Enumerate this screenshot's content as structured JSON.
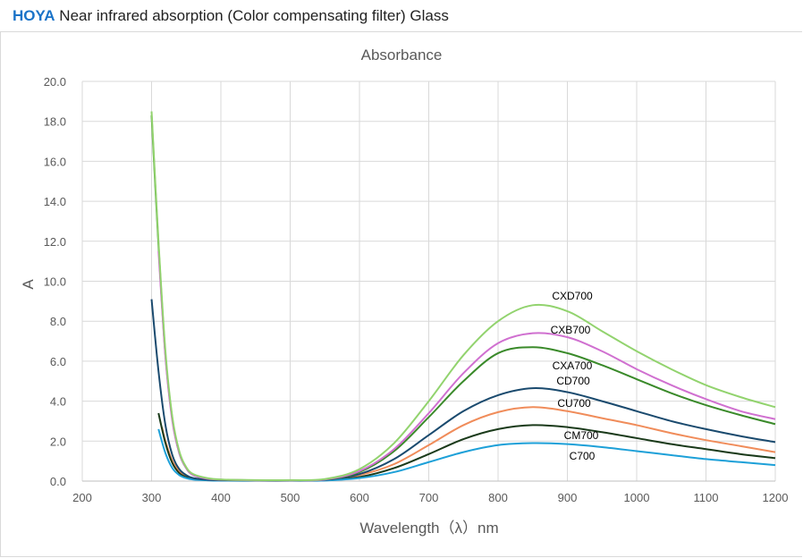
{
  "header": {
    "brand": "HOYA",
    "title": "Near infrared absorption (Color compensating filter) Glass"
  },
  "chart_data": {
    "type": "line",
    "title": "Absorbance",
    "xlabel": "Wavelength（λ）nm",
    "ylabel": "A",
    "xlim": [
      200,
      1200
    ],
    "ylim": [
      0,
      20
    ],
    "xticks": [
      "200",
      "300",
      "400",
      "500",
      "600",
      "700",
      "800",
      "900",
      "1000",
      "1100",
      "1200"
    ],
    "yticks": [
      "0.0",
      "2.0",
      "4.0",
      "6.0",
      "8.0",
      "10.0",
      "12.0",
      "14.0",
      "16.0",
      "18.0",
      "20.0"
    ],
    "grid": true,
    "legend": "inline labels",
    "series": [
      {
        "name": "CXD700",
        "color": "#92d36e",
        "x": [
          300,
          310,
          320,
          330,
          340,
          350,
          360,
          380,
          400,
          450,
          500,
          550,
          600,
          650,
          700,
          750,
          800,
          850,
          900,
          950,
          1000,
          1050,
          1100,
          1150,
          1200
        ],
        "y": [
          18.5,
          12,
          6.5,
          3.2,
          1.5,
          0.7,
          0.35,
          0.15,
          0.08,
          0.05,
          0.05,
          0.1,
          0.6,
          1.9,
          4.0,
          6.3,
          8.0,
          8.8,
          8.5,
          7.5,
          6.5,
          5.6,
          4.8,
          4.2,
          3.7
        ]
      },
      {
        "name": "CXB700",
        "color": "#d070d0",
        "x": [
          310,
          320,
          330,
          340,
          350,
          360,
          380,
          400,
          450,
          500,
          550,
          600,
          650,
          700,
          750,
          800,
          850,
          900,
          950,
          1000,
          1050,
          1100,
          1150,
          1200
        ],
        "y": [
          11.5,
          6.2,
          3.0,
          1.4,
          0.65,
          0.3,
          0.12,
          0.07,
          0.04,
          0.04,
          0.08,
          0.5,
          1.6,
          3.4,
          5.4,
          6.9,
          7.4,
          7.2,
          6.5,
          5.6,
          4.8,
          4.1,
          3.5,
          3.1
        ]
      },
      {
        "name": "CXA700",
        "color": "#3a8a2a",
        "x": [
          300,
          310,
          320,
          330,
          340,
          350,
          360,
          380,
          400,
          450,
          500,
          550,
          600,
          650,
          700,
          750,
          800,
          850,
          900,
          950,
          1000,
          1050,
          1100,
          1150,
          1200
        ],
        "y": [
          18.3,
          11.8,
          6.3,
          3.1,
          1.4,
          0.65,
          0.3,
          0.12,
          0.07,
          0.04,
          0.04,
          0.08,
          0.45,
          1.5,
          3.2,
          5.0,
          6.4,
          6.7,
          6.4,
          5.8,
          5.1,
          4.4,
          3.8,
          3.3,
          2.85
        ]
      },
      {
        "name": "CD700",
        "color": "#1a4a6e",
        "x": [
          300,
          310,
          320,
          330,
          340,
          350,
          360,
          380,
          400,
          450,
          500,
          550,
          600,
          650,
          700,
          750,
          800,
          850,
          900,
          950,
          1000,
          1050,
          1100,
          1150,
          1200
        ],
        "y": [
          9.1,
          5.5,
          2.8,
          1.3,
          0.6,
          0.3,
          0.15,
          0.07,
          0.04,
          0.03,
          0.03,
          0.06,
          0.35,
          1.1,
          2.3,
          3.5,
          4.3,
          4.65,
          4.45,
          4.0,
          3.5,
          3.0,
          2.6,
          2.25,
          1.95
        ]
      },
      {
        "name": "CU700",
        "color": "#f08c5a",
        "x": [
          315,
          320,
          330,
          340,
          350,
          360,
          380,
          400,
          450,
          500,
          550,
          600,
          650,
          700,
          750,
          800,
          850,
          900,
          950,
          1000,
          1050,
          1100,
          1150,
          1200
        ],
        "y": [
          2.7,
          2.0,
          1.0,
          0.5,
          0.25,
          0.12,
          0.06,
          0.04,
          0.03,
          0.03,
          0.05,
          0.3,
          0.85,
          1.8,
          2.8,
          3.45,
          3.7,
          3.5,
          3.15,
          2.8,
          2.4,
          2.05,
          1.75,
          1.45
        ]
      },
      {
        "name": "CM700",
        "color": "#1a3a1a",
        "x": [
          310,
          320,
          330,
          340,
          350,
          360,
          380,
          400,
          450,
          500,
          550,
          600,
          650,
          700,
          750,
          800,
          850,
          900,
          950,
          1000,
          1050,
          1100,
          1150,
          1200
        ],
        "y": [
          3.4,
          1.9,
          0.9,
          0.4,
          0.2,
          0.1,
          0.05,
          0.03,
          0.02,
          0.02,
          0.04,
          0.2,
          0.65,
          1.35,
          2.1,
          2.6,
          2.8,
          2.7,
          2.45,
          2.15,
          1.85,
          1.6,
          1.35,
          1.15
        ]
      },
      {
        "name": "C700",
        "color": "#1da0d8",
        "x": [
          310,
          320,
          330,
          340,
          350,
          360,
          380,
          400,
          450,
          500,
          550,
          600,
          650,
          700,
          750,
          800,
          850,
          900,
          950,
          1000,
          1050,
          1100,
          1150,
          1200
        ],
        "y": [
          2.6,
          1.4,
          0.65,
          0.3,
          0.15,
          0.08,
          0.04,
          0.02,
          0.02,
          0.02,
          0.03,
          0.15,
          0.45,
          0.95,
          1.45,
          1.8,
          1.9,
          1.85,
          1.7,
          1.5,
          1.3,
          1.1,
          0.95,
          0.8
        ]
      }
    ]
  }
}
